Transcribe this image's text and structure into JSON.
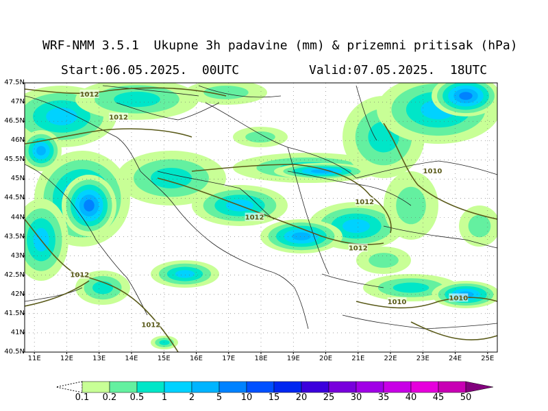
{
  "header": {
    "title": "WRF-NMM 3.5.1  Ukupne 3h padavine (mm) & prizemni pritisak (hPa)",
    "start": "Start:06.05.2025.  00UTC",
    "valid": "Valid:07.05.2025.  18UTC"
  },
  "axes": {
    "lat_labels": [
      "47.5N",
      "47N",
      "46.5N",
      "46N",
      "45.5N",
      "45N",
      "44.5N",
      "44N",
      "43.5N",
      "43N",
      "42.5N",
      "42N",
      "41.5N",
      "41N",
      "40.5N"
    ],
    "lon_labels": [
      "11E",
      "12E",
      "13E",
      "14E",
      "15E",
      "16E",
      "17E",
      "18E",
      "19E",
      "20E",
      "21E",
      "22E",
      "23E",
      "24E",
      "25E"
    ],
    "lat_range": [
      40.5,
      47.5
    ],
    "lon_range": [
      10.7,
      25.3
    ]
  },
  "isobars": {
    "color": "#5a5a1a",
    "labels": [
      {
        "text": "1012",
        "lon": 12.7,
        "lat": 47.2
      },
      {
        "text": "1012",
        "lon": 13.6,
        "lat": 46.6
      },
      {
        "text": "1012",
        "lon": 17.8,
        "lat": 44.0
      },
      {
        "text": "1012",
        "lon": 21.2,
        "lat": 44.4
      },
      {
        "text": "1010",
        "lon": 23.3,
        "lat": 45.2
      },
      {
        "text": "1012",
        "lon": 21.0,
        "lat": 43.2
      },
      {
        "text": "1012",
        "lon": 12.4,
        "lat": 42.5
      },
      {
        "text": "1012",
        "lon": 14.6,
        "lat": 41.2
      },
      {
        "text": "1010",
        "lon": 22.2,
        "lat": 41.8
      },
      {
        "text": "1010",
        "lon": 24.1,
        "lat": 41.9
      }
    ]
  },
  "colorbar": {
    "labels": [
      "0.1",
      "0.2",
      "0.5",
      "1",
      "2",
      "5",
      "10",
      "15",
      "20",
      "25",
      "30",
      "35",
      "40",
      "45",
      "50"
    ],
    "colors": [
      "#c8ff96",
      "#64f0a0",
      "#00e6c8",
      "#00d2ff",
      "#00b4ff",
      "#0082ff",
      "#0050ff",
      "#0028f0",
      "#3c00dc",
      "#7800dc",
      "#a000e6",
      "#c800e6",
      "#e600dc",
      "#c800b4",
      "#a00096",
      "#82007d"
    ]
  },
  "precip": {
    "colors": [
      "#c8ff96",
      "#64f0a0",
      "#00e6c8",
      "#00d2ff",
      "#00b4ff",
      "#0082ff"
    ]
  }
}
